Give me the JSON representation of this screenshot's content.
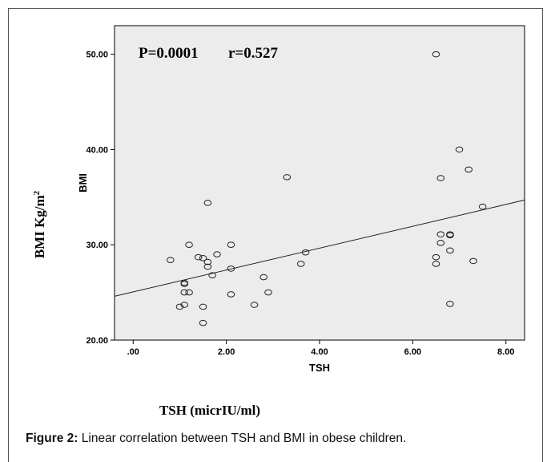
{
  "caption": {
    "label": "Figure 2:",
    "text": " Linear correlation between TSH and BMI in obese children."
  },
  "outer_labels": {
    "x": "TSH (micrIU/ml)",
    "y_prefix": "BMI Kg/m",
    "y_superscript": "2"
  },
  "chart_data": {
    "type": "scatter",
    "title": "",
    "xlabel": "TSH",
    "ylabel": "BMI",
    "xlim": [
      -0.4,
      8.4
    ],
    "ylim": [
      20,
      53
    ],
    "x_ticks": [
      0,
      2,
      4,
      6,
      8
    ],
    "x_tick_labels": [
      ".00",
      "2.00",
      "4.00",
      "6.00",
      "8.00"
    ],
    "y_ticks": [
      20,
      30,
      40,
      50
    ],
    "y_tick_labels": [
      "20.00",
      "30.00",
      "40.00",
      "50.00"
    ],
    "annotations": [
      "P=0.0001",
      "r=0.527"
    ],
    "grid": false,
    "background": "#ececec",
    "points": [
      {
        "x": 0.8,
        "y": 28.4
      },
      {
        "x": 1.0,
        "y": 23.5
      },
      {
        "x": 1.1,
        "y": 23.7
      },
      {
        "x": 1.1,
        "y": 25.0
      },
      {
        "x": 1.1,
        "y": 25.9
      },
      {
        "x": 1.1,
        "y": 26.0
      },
      {
        "x": 1.2,
        "y": 25.0
      },
      {
        "x": 1.2,
        "y": 30.0
      },
      {
        "x": 1.4,
        "y": 28.7
      },
      {
        "x": 1.5,
        "y": 28.6
      },
      {
        "x": 1.5,
        "y": 23.5
      },
      {
        "x": 1.5,
        "y": 21.8
      },
      {
        "x": 1.6,
        "y": 28.2
      },
      {
        "x": 1.6,
        "y": 27.7
      },
      {
        "x": 1.6,
        "y": 34.4
      },
      {
        "x": 1.7,
        "y": 26.8
      },
      {
        "x": 1.8,
        "y": 29.0
      },
      {
        "x": 2.1,
        "y": 30.0
      },
      {
        "x": 2.1,
        "y": 27.5
      },
      {
        "x": 2.1,
        "y": 24.8
      },
      {
        "x": 2.6,
        "y": 23.7
      },
      {
        "x": 2.8,
        "y": 26.6
      },
      {
        "x": 2.9,
        "y": 25.0
      },
      {
        "x": 3.3,
        "y": 37.1
      },
      {
        "x": 3.6,
        "y": 28.0
      },
      {
        "x": 3.7,
        "y": 29.2
      },
      {
        "x": 6.5,
        "y": 50.0
      },
      {
        "x": 6.5,
        "y": 28.7
      },
      {
        "x": 6.5,
        "y": 28.0
      },
      {
        "x": 6.6,
        "y": 37.0
      },
      {
        "x": 6.6,
        "y": 31.1
      },
      {
        "x": 6.6,
        "y": 30.2
      },
      {
        "x": 6.8,
        "y": 31.1
      },
      {
        "x": 6.8,
        "y": 31.0
      },
      {
        "x": 6.8,
        "y": 29.4
      },
      {
        "x": 6.8,
        "y": 23.8
      },
      {
        "x": 7.0,
        "y": 40.0
      },
      {
        "x": 7.2,
        "y": 37.9
      },
      {
        "x": 7.3,
        "y": 28.3
      },
      {
        "x": 7.5,
        "y": 34.0
      }
    ],
    "fit_line": {
      "x1": -0.4,
      "y1": 24.6,
      "x2": 8.4,
      "y2": 34.7
    },
    "colors": {
      "point_stroke": "#222222",
      "line": "#222222",
      "axis": "#000000"
    }
  }
}
